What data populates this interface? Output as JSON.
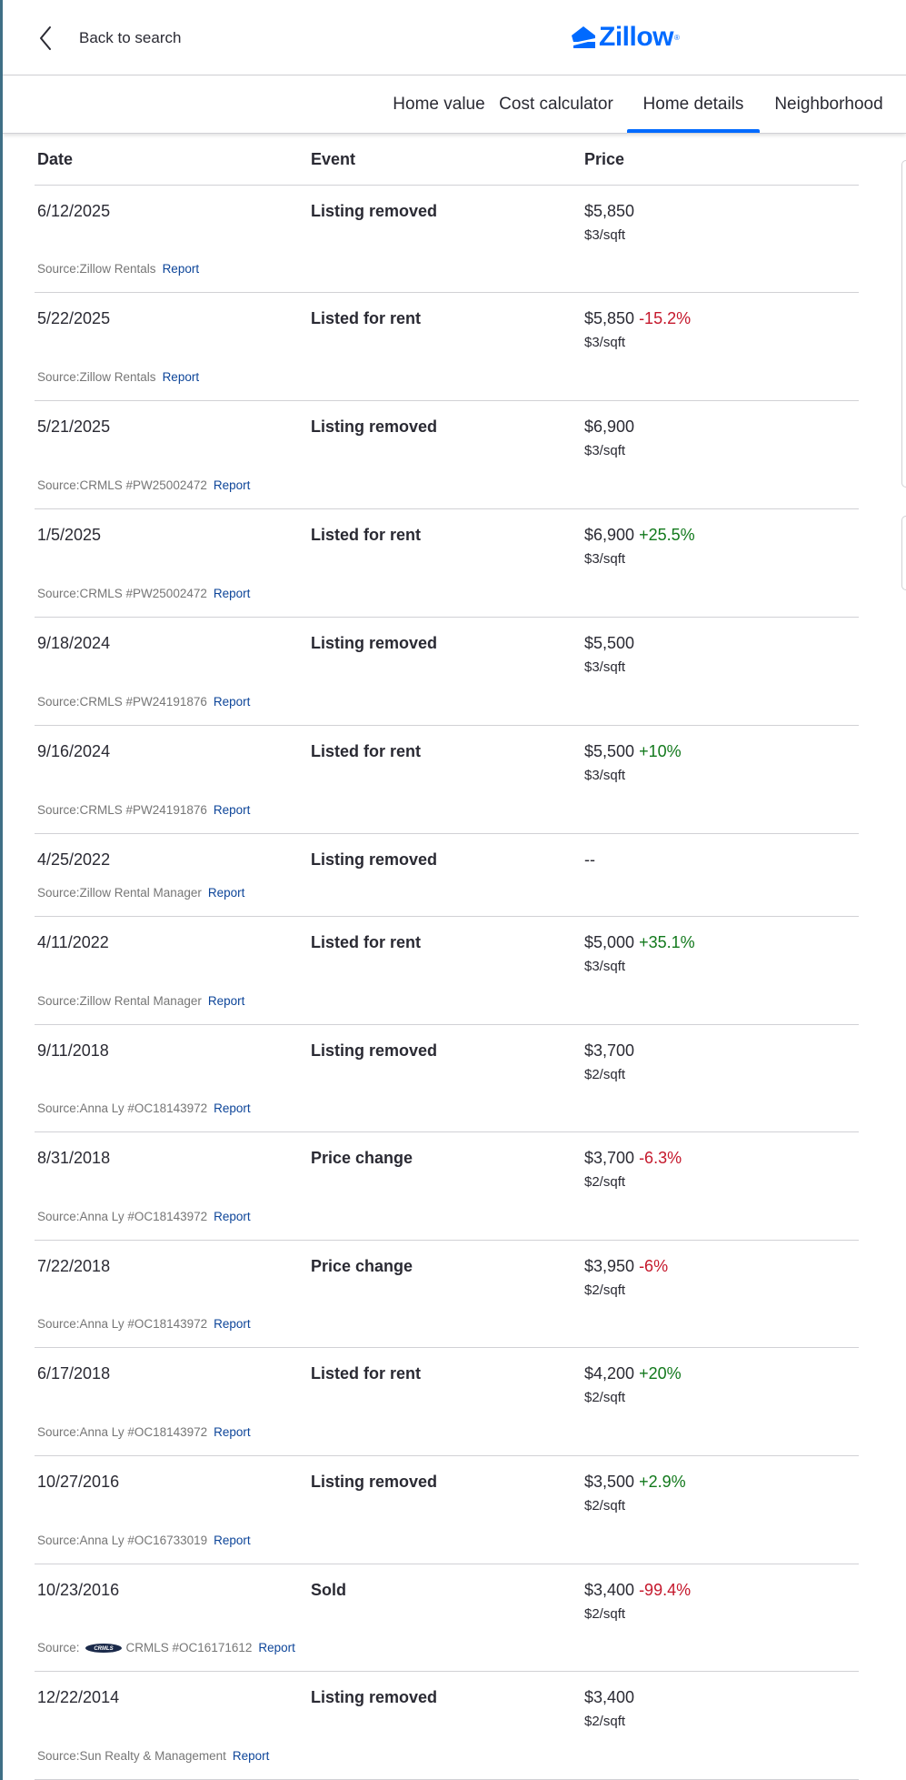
{
  "header": {
    "back_label": "Back to search",
    "logo_text": "Zillow",
    "brand_color": "#006aff"
  },
  "tabs": [
    {
      "label": "Home value"
    },
    {
      "label": "Cost calculator"
    },
    {
      "label": "Home details",
      "active": true
    },
    {
      "label": "Neighborhood"
    }
  ],
  "table": {
    "headers": {
      "date": "Date",
      "event": "Event",
      "price": "Price"
    },
    "source_prefix": "Source:",
    "report_label": "Report",
    "rows": [
      {
        "date": "6/12/2025",
        "event": "Listing removed",
        "price": "$5,850",
        "change": "",
        "sqft": "$3/sqft",
        "source": "Zillow Rentals"
      },
      {
        "date": "5/22/2025",
        "event": "Listed for rent",
        "price": "$5,850",
        "change": "-15.2%",
        "sqft": "$3/sqft",
        "source": "Zillow Rentals"
      },
      {
        "date": "5/21/2025",
        "event": "Listing removed",
        "price": "$6,900",
        "change": "",
        "sqft": "$3/sqft",
        "source": "CRMLS #PW25002472"
      },
      {
        "date": "1/5/2025",
        "event": "Listed for rent",
        "price": "$6,900",
        "change": "+25.5%",
        "sqft": "$3/sqft",
        "source": "CRMLS #PW25002472"
      },
      {
        "date": "9/18/2024",
        "event": "Listing removed",
        "price": "$5,500",
        "change": "",
        "sqft": "$3/sqft",
        "source": "CRMLS #PW24191876"
      },
      {
        "date": "9/16/2024",
        "event": "Listed for rent",
        "price": "$5,500",
        "change": "+10%",
        "sqft": "$3/sqft",
        "source": "CRMLS #PW24191876"
      },
      {
        "date": "4/25/2022",
        "event": "Listing removed",
        "price": "--",
        "change": "",
        "sqft": "",
        "source": "Zillow Rental Manager"
      },
      {
        "date": "4/11/2022",
        "event": "Listed for rent",
        "price": "$5,000",
        "change": "+35.1%",
        "sqft": "$3/sqft",
        "source": "Zillow Rental Manager"
      },
      {
        "date": "9/11/2018",
        "event": "Listing removed",
        "price": "$3,700",
        "change": "",
        "sqft": "$2/sqft",
        "source": "Anna Ly #OC18143972"
      },
      {
        "date": "8/31/2018",
        "event": "Price change",
        "price": "$3,700",
        "change": "-6.3%",
        "sqft": "$2/sqft",
        "source": "Anna Ly #OC18143972"
      },
      {
        "date": "7/22/2018",
        "event": "Price change",
        "price": "$3,950",
        "change": "-6%",
        "sqft": "$2/sqft",
        "source": "Anna Ly #OC18143972"
      },
      {
        "date": "6/17/2018",
        "event": "Listed for rent",
        "price": "$4,200",
        "change": "+20%",
        "sqft": "$2/sqft",
        "source": "Anna Ly #OC18143972"
      },
      {
        "date": "10/27/2016",
        "event": "Listing removed",
        "price": "$3,500",
        "change": "+2.9%",
        "sqft": "$2/sqft",
        "source": "Anna Ly #OC16733019"
      },
      {
        "date": "10/23/2016",
        "event": "Sold",
        "price": "$3,400",
        "change": "-99.4%",
        "sqft": "$2/sqft",
        "source": "CRMLS #OC16171612",
        "source_logo": "CRMLS",
        "source_logo_icon": "crmls-logo-icon"
      },
      {
        "date": "12/22/2014",
        "event": "Listing removed",
        "price": "$3,400",
        "change": "",
        "sqft": "$2/sqft",
        "source": "Sun Realty & Management"
      }
    ]
  },
  "colors": {
    "negative": "#c5182c",
    "positive": "#12791c",
    "link": "#0d4599"
  }
}
